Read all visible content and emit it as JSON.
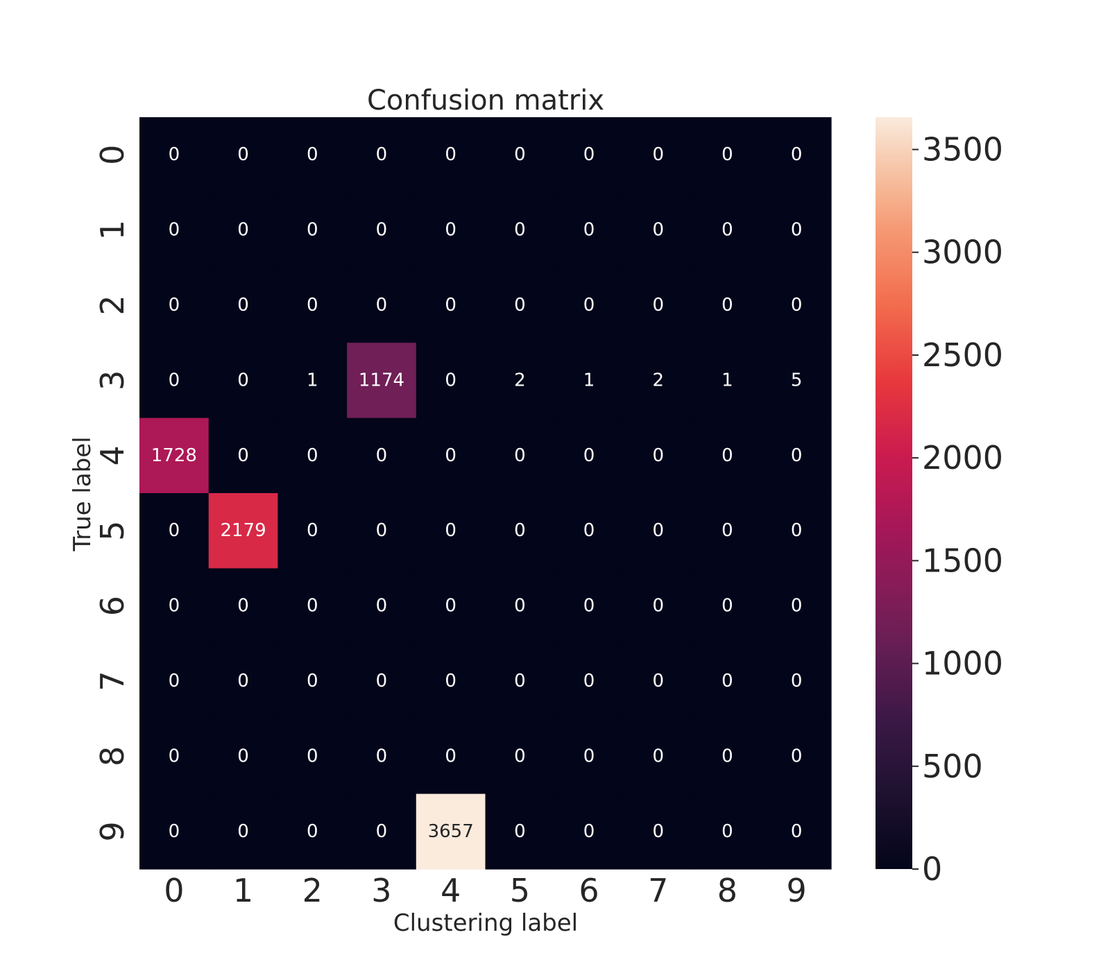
{
  "chart_data": {
    "type": "heatmap",
    "title": "Confusion matrix",
    "xlabel": "Clustering label",
    "ylabel": "True label",
    "x_categories": [
      "0",
      "1",
      "2",
      "3",
      "4",
      "5",
      "6",
      "7",
      "8",
      "9"
    ],
    "y_categories": [
      "0",
      "1",
      "2",
      "3",
      "4",
      "5",
      "6",
      "7",
      "8",
      "9"
    ],
    "values": [
      [
        0,
        0,
        0,
        0,
        0,
        0,
        0,
        0,
        0,
        0
      ],
      [
        0,
        0,
        0,
        0,
        0,
        0,
        0,
        0,
        0,
        0
      ],
      [
        0,
        0,
        0,
        0,
        0,
        0,
        0,
        0,
        0,
        0
      ],
      [
        0,
        0,
        1,
        1174,
        0,
        2,
        1,
        2,
        1,
        5
      ],
      [
        1728,
        0,
        0,
        0,
        0,
        0,
        0,
        0,
        0,
        0
      ],
      [
        0,
        2179,
        0,
        0,
        0,
        0,
        0,
        0,
        0,
        0
      ],
      [
        0,
        0,
        0,
        0,
        0,
        0,
        0,
        0,
        0,
        0
      ],
      [
        0,
        0,
        0,
        0,
        0,
        0,
        0,
        0,
        0,
        0
      ],
      [
        0,
        0,
        0,
        0,
        0,
        0,
        0,
        0,
        0,
        0
      ],
      [
        0,
        0,
        0,
        0,
        3657,
        0,
        0,
        0,
        0,
        0
      ]
    ],
    "colormap": "rocket",
    "colorbar": {
      "range": [
        0,
        3657
      ],
      "ticks": [
        0,
        500,
        1000,
        1500,
        2000,
        2500,
        3000,
        3500
      ]
    },
    "grid": false
  }
}
